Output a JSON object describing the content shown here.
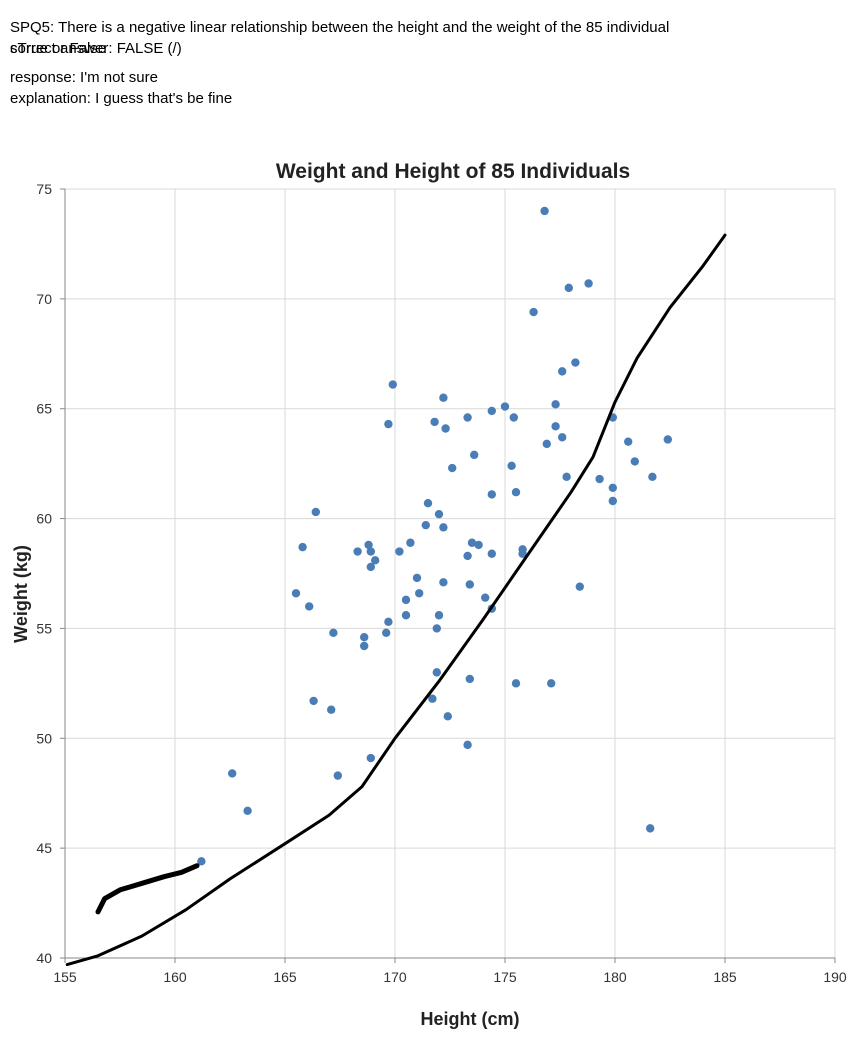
{
  "header": {
    "question": "SPQ5: There is a negative linear relationship between the height and the weight of the 85 individual",
    "overlap_a": "sTrue or False",
    "overlap_b": "correct answer: FALSE (/)",
    "response": "response: I'm not sure",
    "explanation": "explanation: I guess that's  be fine"
  },
  "chart_data": {
    "type": "scatter",
    "title": "Weight and Height of 85 Individuals",
    "xlabel": "Height (cm)",
    "ylabel": "Weight (kg)",
    "xlim": [
      155,
      190
    ],
    "ylim": [
      40,
      75
    ],
    "x_ticks": [
      155,
      160,
      165,
      170,
      175,
      180,
      185,
      190
    ],
    "y_ticks": [
      40,
      45,
      50,
      55,
      60,
      65,
      70,
      75
    ],
    "grid": true,
    "point_color": "#4a7db5",
    "annotation_color": "#000000",
    "points": [
      {
        "x": 176.8,
        "y": 74.0
      },
      {
        "x": 178.8,
        "y": 70.7
      },
      {
        "x": 177.9,
        "y": 70.5
      },
      {
        "x": 176.3,
        "y": 69.4
      },
      {
        "x": 178.2,
        "y": 67.1
      },
      {
        "x": 177.6,
        "y": 66.7
      },
      {
        "x": 169.9,
        "y": 66.1
      },
      {
        "x": 172.2,
        "y": 65.5
      },
      {
        "x": 175.0,
        "y": 65.1
      },
      {
        "x": 177.3,
        "y": 65.2
      },
      {
        "x": 174.4,
        "y": 64.9
      },
      {
        "x": 175.4,
        "y": 64.6
      },
      {
        "x": 173.3,
        "y": 64.6
      },
      {
        "x": 179.9,
        "y": 64.6
      },
      {
        "x": 171.8,
        "y": 64.4
      },
      {
        "x": 169.7,
        "y": 64.3
      },
      {
        "x": 172.3,
        "y": 64.1
      },
      {
        "x": 177.3,
        "y": 64.2
      },
      {
        "x": 177.6,
        "y": 63.7
      },
      {
        "x": 180.6,
        "y": 63.5
      },
      {
        "x": 182.4,
        "y": 63.6
      },
      {
        "x": 176.9,
        "y": 63.4
      },
      {
        "x": 173.6,
        "y": 62.9
      },
      {
        "x": 180.9,
        "y": 62.6
      },
      {
        "x": 175.3,
        "y": 62.4
      },
      {
        "x": 172.6,
        "y": 62.3
      },
      {
        "x": 177.8,
        "y": 61.9
      },
      {
        "x": 179.3,
        "y": 61.8
      },
      {
        "x": 181.7,
        "y": 61.9
      },
      {
        "x": 179.9,
        "y": 61.4
      },
      {
        "x": 175.5,
        "y": 61.2
      },
      {
        "x": 174.4,
        "y": 61.1
      },
      {
        "x": 179.9,
        "y": 60.8
      },
      {
        "x": 171.5,
        "y": 60.7
      },
      {
        "x": 166.4,
        "y": 60.3
      },
      {
        "x": 172.0,
        "y": 60.2
      },
      {
        "x": 171.4,
        "y": 59.7
      },
      {
        "x": 172.2,
        "y": 59.6
      },
      {
        "x": 170.7,
        "y": 58.9
      },
      {
        "x": 173.5,
        "y": 58.9
      },
      {
        "x": 168.8,
        "y": 58.8
      },
      {
        "x": 173.8,
        "y": 58.8
      },
      {
        "x": 165.8,
        "y": 58.7
      },
      {
        "x": 175.8,
        "y": 58.6
      },
      {
        "x": 168.3,
        "y": 58.5
      },
      {
        "x": 170.2,
        "y": 58.5
      },
      {
        "x": 168.9,
        "y": 58.5
      },
      {
        "x": 174.4,
        "y": 58.4
      },
      {
        "x": 175.8,
        "y": 58.4
      },
      {
        "x": 173.3,
        "y": 58.3
      },
      {
        "x": 169.1,
        "y": 58.1
      },
      {
        "x": 168.9,
        "y": 57.8
      },
      {
        "x": 171.0,
        "y": 57.3
      },
      {
        "x": 172.2,
        "y": 57.1
      },
      {
        "x": 173.4,
        "y": 57.0
      },
      {
        "x": 178.4,
        "y": 56.9
      },
      {
        "x": 165.5,
        "y": 56.6
      },
      {
        "x": 171.1,
        "y": 56.6
      },
      {
        "x": 174.1,
        "y": 56.4
      },
      {
        "x": 170.5,
        "y": 56.3
      },
      {
        "x": 166.1,
        "y": 56.0
      },
      {
        "x": 174.4,
        "y": 55.9
      },
      {
        "x": 170.5,
        "y": 55.6
      },
      {
        "x": 172.0,
        "y": 55.6
      },
      {
        "x": 169.7,
        "y": 55.3
      },
      {
        "x": 171.9,
        "y": 55.0
      },
      {
        "x": 167.2,
        "y": 54.8
      },
      {
        "x": 169.6,
        "y": 54.8
      },
      {
        "x": 168.6,
        "y": 54.6
      },
      {
        "x": 168.6,
        "y": 54.2
      },
      {
        "x": 171.9,
        "y": 53.0
      },
      {
        "x": 173.4,
        "y": 52.7
      },
      {
        "x": 175.5,
        "y": 52.5
      },
      {
        "x": 177.1,
        "y": 52.5
      },
      {
        "x": 171.7,
        "y": 51.8
      },
      {
        "x": 166.3,
        "y": 51.7
      },
      {
        "x": 167.1,
        "y": 51.3
      },
      {
        "x": 172.4,
        "y": 51.0
      },
      {
        "x": 173.3,
        "y": 49.7
      },
      {
        "x": 168.9,
        "y": 49.1
      },
      {
        "x": 162.6,
        "y": 48.4
      },
      {
        "x": 167.4,
        "y": 48.3
      },
      {
        "x": 163.3,
        "y": 46.7
      },
      {
        "x": 181.6,
        "y": 45.9
      },
      {
        "x": 161.2,
        "y": 44.4
      }
    ],
    "annotations": [
      {
        "name": "hand-drawn-trend-stroke",
        "points": [
          [
            155.1,
            39.7
          ],
          [
            156.5,
            40.1
          ],
          [
            158.5,
            41.0
          ],
          [
            160.5,
            42.2
          ],
          [
            162.5,
            43.6
          ],
          [
            165,
            45.2
          ],
          [
            167,
            46.5
          ],
          [
            168.5,
            47.8
          ],
          [
            170,
            50.0
          ],
          [
            172,
            52.6
          ],
          [
            174,
            55.4
          ],
          [
            176,
            58.3
          ],
          [
            178,
            61.2
          ],
          [
            179,
            62.8
          ],
          [
            180,
            65.3
          ],
          [
            181,
            67.3
          ],
          [
            182.5,
            69.6
          ],
          [
            184,
            71.5
          ],
          [
            185,
            72.9
          ]
        ],
        "width": 3
      },
      {
        "name": "hand-drawn-short-stroke",
        "points": [
          [
            156.5,
            42.1
          ],
          [
            156.8,
            42.7
          ],
          [
            157.5,
            43.1
          ],
          [
            158.5,
            43.4
          ],
          [
            159.5,
            43.7
          ],
          [
            160.3,
            43.9
          ],
          [
            161,
            44.2
          ]
        ],
        "width": 5
      }
    ]
  }
}
